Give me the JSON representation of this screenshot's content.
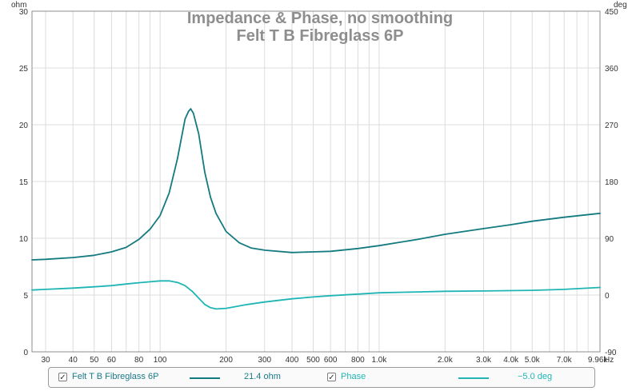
{
  "chart_data": {
    "type": "line",
    "title": "Impedance & Phase, no smoothing",
    "subtitle": "Felt T B Fibreglass 6P",
    "x_scale": "log",
    "x_range": [
      26,
      10200
    ],
    "x_unit": "Hz",
    "x_ticks": [
      {
        "v": 30,
        "label": "30"
      },
      {
        "v": 40,
        "label": "40"
      },
      {
        "v": 50,
        "label": "50"
      },
      {
        "v": 60,
        "label": "60"
      },
      {
        "v": 80,
        "label": "80"
      },
      {
        "v": 100,
        "label": "100"
      },
      {
        "v": 200,
        "label": "200"
      },
      {
        "v": 300,
        "label": "300"
      },
      {
        "v": 400,
        "label": "400"
      },
      {
        "v": 500,
        "label": "500"
      },
      {
        "v": 600,
        "label": "600"
      },
      {
        "v": 800,
        "label": "800"
      },
      {
        "v": 1000,
        "label": "1.0k"
      },
      {
        "v": 2000,
        "label": "2.0k"
      },
      {
        "v": 3000,
        "label": "3.0k"
      },
      {
        "v": 4000,
        "label": "4.0k"
      },
      {
        "v": 5000,
        "label": "5.0k"
      },
      {
        "v": 7000,
        "label": "7.0k"
      },
      {
        "v": 9960,
        "label": "9.96k"
      }
    ],
    "y_left": {
      "unit": "ohm",
      "range": [
        0,
        30
      ],
      "ticks": [
        "0",
        "5",
        "10",
        "15",
        "20",
        "25",
        "30"
      ]
    },
    "y_right": {
      "unit": "deg",
      "range": [
        -90,
        450
      ],
      "ticks": [
        "-90",
        "0",
        "90",
        "180",
        "270",
        "360",
        "450"
      ]
    },
    "grid": true,
    "series": [
      {
        "name": "Felt T B Fibreglass 6P",
        "axis": "left",
        "color": "#137a80",
        "points": [
          [
            26,
            8.1
          ],
          [
            30,
            8.15
          ],
          [
            40,
            8.3
          ],
          [
            50,
            8.5
          ],
          [
            60,
            8.8
          ],
          [
            70,
            9.2
          ],
          [
            80,
            9.9
          ],
          [
            90,
            10.8
          ],
          [
            100,
            12.0
          ],
          [
            110,
            14.0
          ],
          [
            120,
            17.0
          ],
          [
            130,
            20.5
          ],
          [
            135,
            21.2
          ],
          [
            138,
            21.4
          ],
          [
            142,
            21.0
          ],
          [
            150,
            19.2
          ],
          [
            160,
            15.8
          ],
          [
            170,
            13.6
          ],
          [
            180,
            12.2
          ],
          [
            200,
            10.6
          ],
          [
            230,
            9.6
          ],
          [
            260,
            9.15
          ],
          [
            300,
            8.95
          ],
          [
            400,
            8.75
          ],
          [
            500,
            8.8
          ],
          [
            600,
            8.85
          ],
          [
            800,
            9.1
          ],
          [
            1000,
            9.35
          ],
          [
            1500,
            9.9
          ],
          [
            2000,
            10.35
          ],
          [
            3000,
            10.85
          ],
          [
            4000,
            11.2
          ],
          [
            5000,
            11.5
          ],
          [
            7000,
            11.85
          ],
          [
            10200,
            12.2
          ]
        ]
      },
      {
        "name": "Phase",
        "axis": "right",
        "color": "#1fb5b5",
        "points": [
          [
            26,
            8
          ],
          [
            30,
            9
          ],
          [
            40,
            11
          ],
          [
            50,
            13
          ],
          [
            60,
            15
          ],
          [
            70,
            17.5
          ],
          [
            80,
            19.5
          ],
          [
            90,
            21
          ],
          [
            100,
            22.5
          ],
          [
            110,
            22.5
          ],
          [
            120,
            20
          ],
          [
            130,
            15
          ],
          [
            140,
            6
          ],
          [
            150,
            -5
          ],
          [
            160,
            -15
          ],
          [
            170,
            -20
          ],
          [
            180,
            -22
          ],
          [
            200,
            -21
          ],
          [
            250,
            -15
          ],
          [
            300,
            -11
          ],
          [
            400,
            -6
          ],
          [
            500,
            -3
          ],
          [
            600,
            -1
          ],
          [
            800,
            1.5
          ],
          [
            1000,
            3.5
          ],
          [
            1500,
            5
          ],
          [
            2000,
            6
          ],
          [
            3000,
            6.5
          ],
          [
            5000,
            7.5
          ],
          [
            7000,
            9
          ],
          [
            10200,
            12
          ]
        ]
      }
    ]
  },
  "legend": {
    "series1_label": "Felt T B Fibreglass 6P",
    "series1_value": "21.4 ohm",
    "series2_label": "Phase",
    "series2_value": "−5.0 deg",
    "check_glyph": "✓"
  }
}
